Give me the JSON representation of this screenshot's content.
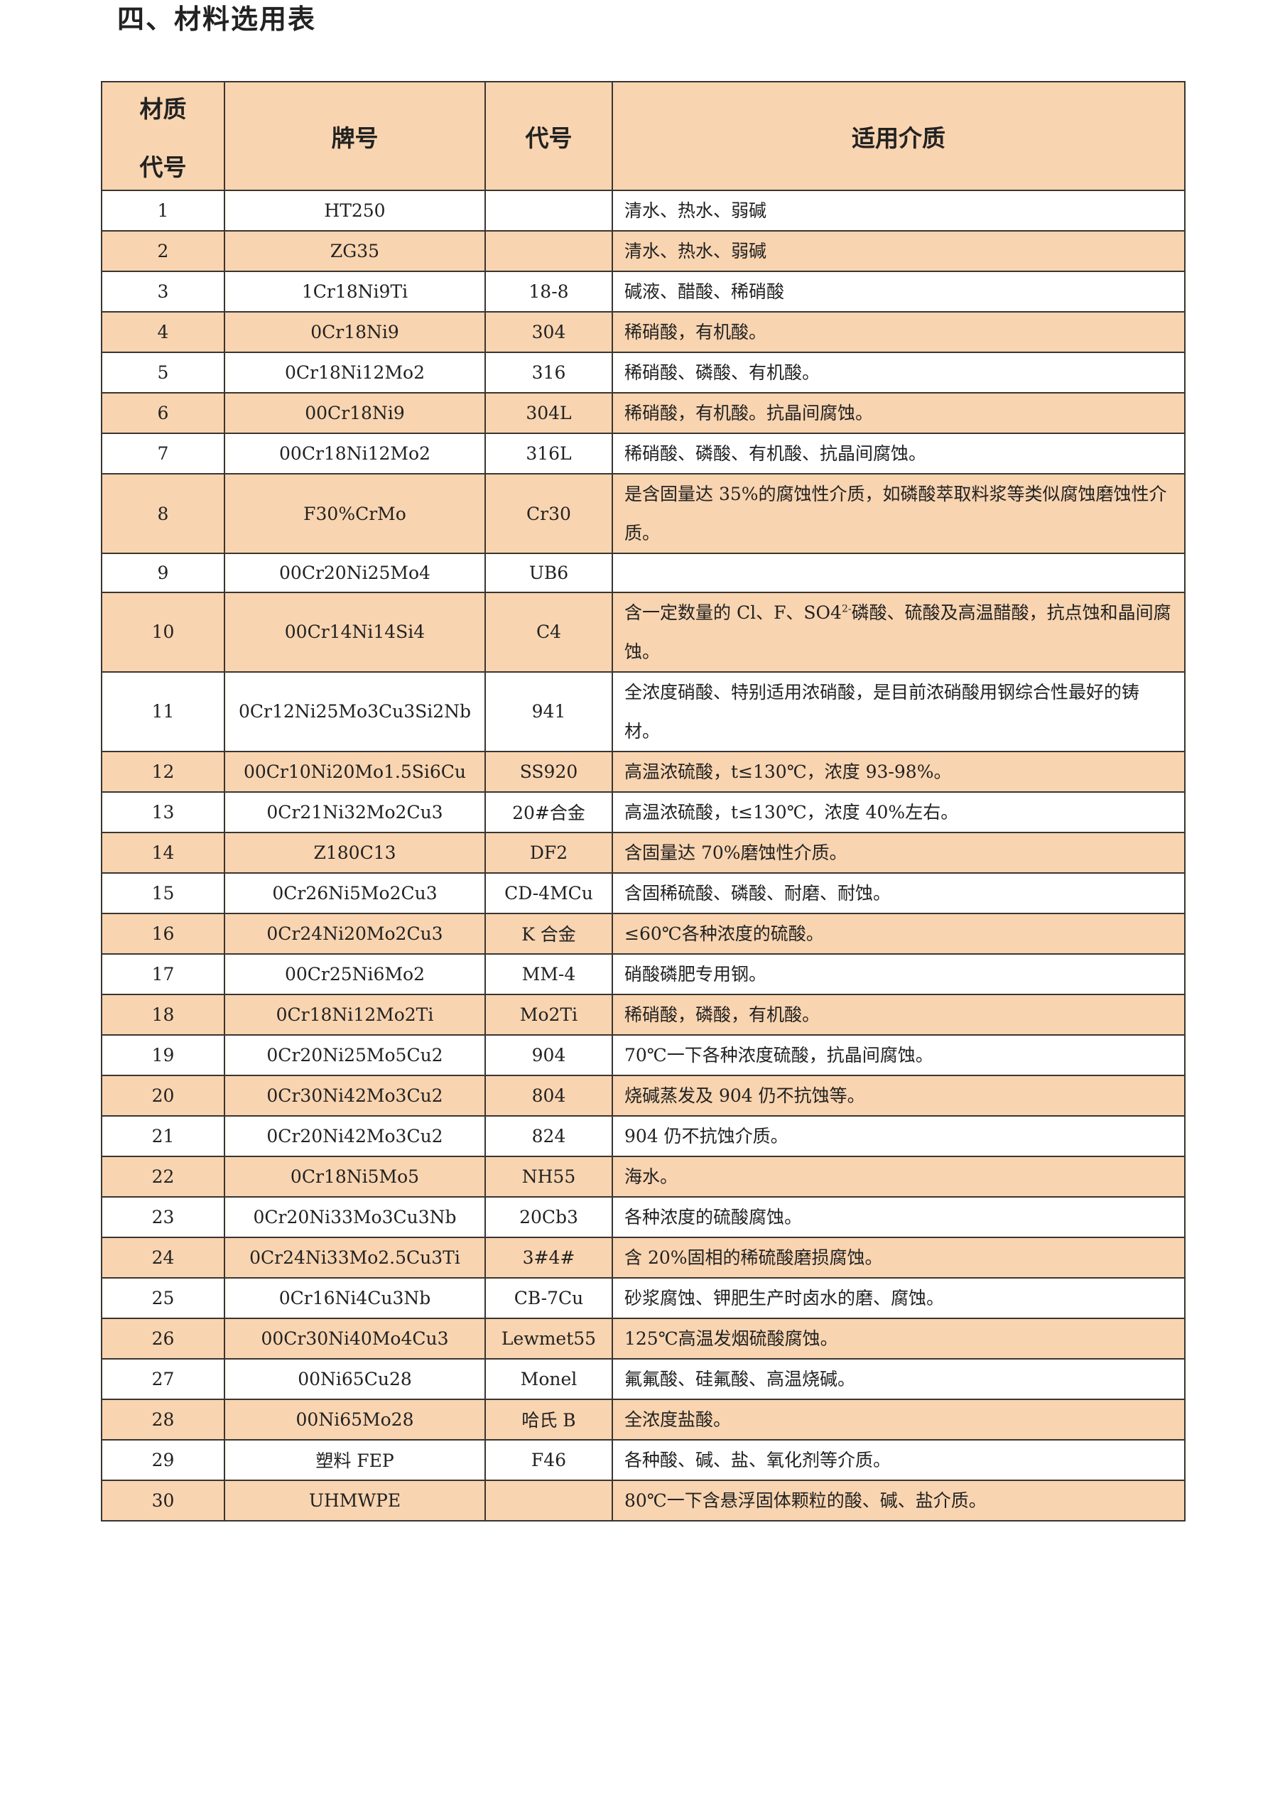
{
  "title": "四、材料选用表",
  "headers": {
    "code_line1": "材质",
    "code_line2": "代号",
    "grade": "牌号",
    "alias": "代号",
    "medium": "适用介质"
  },
  "rows": [
    {
      "no": "1",
      "grade": "HT250",
      "alias": "",
      "medium": "清水、热水、弱碱"
    },
    {
      "no": "2",
      "grade": "ZG35",
      "alias": "",
      "medium": "清水、热水、弱碱"
    },
    {
      "no": "3",
      "grade": "1Cr18Ni9Ti",
      "alias": "18-8",
      "medium": "碱液、醋酸、稀硝酸"
    },
    {
      "no": "4",
      "grade": "0Cr18Ni9",
      "alias": "304",
      "medium": "稀硝酸，有机酸。"
    },
    {
      "no": "5",
      "grade": "0Cr18Ni12Mo2",
      "alias": "316",
      "medium": "稀硝酸、磷酸、有机酸。"
    },
    {
      "no": "6",
      "grade": "00Cr18Ni9",
      "alias": "304L",
      "medium": "稀硝酸，有机酸。抗晶间腐蚀。"
    },
    {
      "no": "7",
      "grade": "00Cr18Ni12Mo2",
      "alias": "316L",
      "medium": "稀硝酸、磷酸、有机酸、抗晶间腐蚀。"
    },
    {
      "no": "8",
      "grade": "F30%CrMo",
      "alias": "Cr30",
      "medium": "是含固量达 35%的腐蚀性介质，如磷酸萃取料浆等类似腐蚀磨蚀性介质。"
    },
    {
      "no": "9",
      "grade": "00Cr20Ni25Mo4",
      "alias": "UB6",
      "medium": ""
    },
    {
      "no": "10",
      "grade": "00Cr14Ni14Si4",
      "alias": "C4",
      "medium_pre": "含一定数量的 Cl、F、SO4",
      "medium_sup": "2-",
      "medium_post": "磷酸、硫酸及高温醋酸，抗点蚀和晶间腐蚀。"
    },
    {
      "no": "11",
      "grade": "0Cr12Ni25Mo3Cu3Si2Nb",
      "alias": "941",
      "medium": "全浓度硝酸、特别适用浓硝酸，是目前浓硝酸用钢综合性最好的铸材。"
    },
    {
      "no": "12",
      "grade": "00Cr10Ni20Mo1.5Si6Cu",
      "alias": "SS920",
      "medium": "高温浓硫酸，t≤130℃，浓度 93-98%。"
    },
    {
      "no": "13",
      "grade": "0Cr21Ni32Mo2Cu3",
      "alias": "20#合金",
      "medium": "高温浓硫酸，t≤130℃，浓度 40%左右。"
    },
    {
      "no": "14",
      "grade": "Z180C13",
      "alias": "DF2",
      "medium": "含固量达 70%磨蚀性介质。"
    },
    {
      "no": "15",
      "grade": "0Cr26Ni5Mo2Cu3",
      "alias": "CD-4MCu",
      "medium": "含固稀硫酸、磷酸、耐磨、耐蚀。"
    },
    {
      "no": "16",
      "grade": "0Cr24Ni20Mo2Cu3",
      "alias": "K 合金",
      "medium": "≤60℃各种浓度的硫酸。"
    },
    {
      "no": "17",
      "grade": "00Cr25Ni6Mo2",
      "alias": "MM-4",
      "medium": "硝酸磷肥专用钢。"
    },
    {
      "no": "18",
      "grade": "0Cr18Ni12Mo2Ti",
      "alias": "Mo2Ti",
      "medium": "稀硝酸，磷酸，有机酸。"
    },
    {
      "no": "19",
      "grade": "0Cr20Ni25Mo5Cu2",
      "alias": "904",
      "medium": "70℃一下各种浓度硫酸，抗晶间腐蚀。"
    },
    {
      "no": "20",
      "grade": "0Cr30Ni42Mo3Cu2",
      "alias": "804",
      "medium": "烧碱蒸发及 904 仍不抗蚀等。"
    },
    {
      "no": "21",
      "grade": "0Cr20Ni42Mo3Cu2",
      "alias": "824",
      "medium": "904 仍不抗蚀介质。"
    },
    {
      "no": "22",
      "grade": "0Cr18Ni5Mo5",
      "alias": "NH55",
      "medium": "海水。"
    },
    {
      "no": "23",
      "grade": "0Cr20Ni33Mo3Cu3Nb",
      "alias": "20Cb3",
      "medium": "各种浓度的硫酸腐蚀。"
    },
    {
      "no": "24",
      "grade": "0Cr24Ni33Mo2.5Cu3Ti",
      "alias": "3#4#",
      "medium": "含 20%固相的稀硫酸磨损腐蚀。"
    },
    {
      "no": "25",
      "grade": "0Cr16Ni4Cu3Nb",
      "alias": "CB-7Cu",
      "medium": "砂浆腐蚀、钾肥生产时卤水的磨、腐蚀。"
    },
    {
      "no": "26",
      "grade": "00Cr30Ni40Mo4Cu3",
      "alias": "Lewmet55",
      "medium": "125℃高温发烟硫酸腐蚀。"
    },
    {
      "no": "27",
      "grade": "00Ni65Cu28",
      "alias": "Monel",
      "medium": "氟氟酸、硅氟酸、高温烧碱。"
    },
    {
      "no": "28",
      "grade": "00Ni65Mo28",
      "alias": "哈氏 B",
      "medium": "全浓度盐酸。"
    },
    {
      "no": "29",
      "grade": "塑料 FEP",
      "alias": "F46",
      "medium": "各种酸、碱、盐、氧化剂等介质。"
    },
    {
      "no": "30",
      "grade": "UHMWPE",
      "alias": "",
      "medium": "80℃一下含悬浮固体颗粒的酸、碱、盐介质。"
    }
  ],
  "colors": {
    "shade": "#f8d4b0",
    "border": "#3a3530"
  }
}
